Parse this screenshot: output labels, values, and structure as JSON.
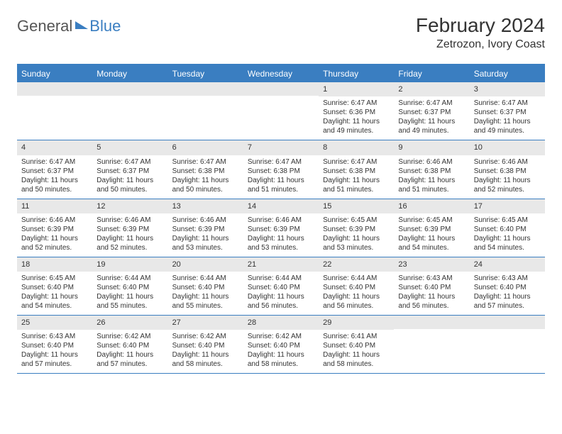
{
  "logo": {
    "text1": "General",
    "text2": "Blue"
  },
  "title": "February 2024",
  "location": "Zetrozon, Ivory Coast",
  "colors": {
    "header_bg": "#3a7ec1",
    "header_text": "#ffffff",
    "daynum_bg": "#e8e8e8",
    "border": "#3a7ec1",
    "body_text": "#333333"
  },
  "day_headers": [
    "Sunday",
    "Monday",
    "Tuesday",
    "Wednesday",
    "Thursday",
    "Friday",
    "Saturday"
  ],
  "weeks": [
    [
      null,
      null,
      null,
      null,
      {
        "n": "1",
        "sr": "Sunrise: 6:47 AM",
        "ss": "Sunset: 6:36 PM",
        "d1": "Daylight: 11 hours",
        "d2": "and 49 minutes."
      },
      {
        "n": "2",
        "sr": "Sunrise: 6:47 AM",
        "ss": "Sunset: 6:37 PM",
        "d1": "Daylight: 11 hours",
        "d2": "and 49 minutes."
      },
      {
        "n": "3",
        "sr": "Sunrise: 6:47 AM",
        "ss": "Sunset: 6:37 PM",
        "d1": "Daylight: 11 hours",
        "d2": "and 49 minutes."
      }
    ],
    [
      {
        "n": "4",
        "sr": "Sunrise: 6:47 AM",
        "ss": "Sunset: 6:37 PM",
        "d1": "Daylight: 11 hours",
        "d2": "and 50 minutes."
      },
      {
        "n": "5",
        "sr": "Sunrise: 6:47 AM",
        "ss": "Sunset: 6:37 PM",
        "d1": "Daylight: 11 hours",
        "d2": "and 50 minutes."
      },
      {
        "n": "6",
        "sr": "Sunrise: 6:47 AM",
        "ss": "Sunset: 6:38 PM",
        "d1": "Daylight: 11 hours",
        "d2": "and 50 minutes."
      },
      {
        "n": "7",
        "sr": "Sunrise: 6:47 AM",
        "ss": "Sunset: 6:38 PM",
        "d1": "Daylight: 11 hours",
        "d2": "and 51 minutes."
      },
      {
        "n": "8",
        "sr": "Sunrise: 6:47 AM",
        "ss": "Sunset: 6:38 PM",
        "d1": "Daylight: 11 hours",
        "d2": "and 51 minutes."
      },
      {
        "n": "9",
        "sr": "Sunrise: 6:46 AM",
        "ss": "Sunset: 6:38 PM",
        "d1": "Daylight: 11 hours",
        "d2": "and 51 minutes."
      },
      {
        "n": "10",
        "sr": "Sunrise: 6:46 AM",
        "ss": "Sunset: 6:38 PM",
        "d1": "Daylight: 11 hours",
        "d2": "and 52 minutes."
      }
    ],
    [
      {
        "n": "11",
        "sr": "Sunrise: 6:46 AM",
        "ss": "Sunset: 6:39 PM",
        "d1": "Daylight: 11 hours",
        "d2": "and 52 minutes."
      },
      {
        "n": "12",
        "sr": "Sunrise: 6:46 AM",
        "ss": "Sunset: 6:39 PM",
        "d1": "Daylight: 11 hours",
        "d2": "and 52 minutes."
      },
      {
        "n": "13",
        "sr": "Sunrise: 6:46 AM",
        "ss": "Sunset: 6:39 PM",
        "d1": "Daylight: 11 hours",
        "d2": "and 53 minutes."
      },
      {
        "n": "14",
        "sr": "Sunrise: 6:46 AM",
        "ss": "Sunset: 6:39 PM",
        "d1": "Daylight: 11 hours",
        "d2": "and 53 minutes."
      },
      {
        "n": "15",
        "sr": "Sunrise: 6:45 AM",
        "ss": "Sunset: 6:39 PM",
        "d1": "Daylight: 11 hours",
        "d2": "and 53 minutes."
      },
      {
        "n": "16",
        "sr": "Sunrise: 6:45 AM",
        "ss": "Sunset: 6:39 PM",
        "d1": "Daylight: 11 hours",
        "d2": "and 54 minutes."
      },
      {
        "n": "17",
        "sr": "Sunrise: 6:45 AM",
        "ss": "Sunset: 6:40 PM",
        "d1": "Daylight: 11 hours",
        "d2": "and 54 minutes."
      }
    ],
    [
      {
        "n": "18",
        "sr": "Sunrise: 6:45 AM",
        "ss": "Sunset: 6:40 PM",
        "d1": "Daylight: 11 hours",
        "d2": "and 54 minutes."
      },
      {
        "n": "19",
        "sr": "Sunrise: 6:44 AM",
        "ss": "Sunset: 6:40 PM",
        "d1": "Daylight: 11 hours",
        "d2": "and 55 minutes."
      },
      {
        "n": "20",
        "sr": "Sunrise: 6:44 AM",
        "ss": "Sunset: 6:40 PM",
        "d1": "Daylight: 11 hours",
        "d2": "and 55 minutes."
      },
      {
        "n": "21",
        "sr": "Sunrise: 6:44 AM",
        "ss": "Sunset: 6:40 PM",
        "d1": "Daylight: 11 hours",
        "d2": "and 56 minutes."
      },
      {
        "n": "22",
        "sr": "Sunrise: 6:44 AM",
        "ss": "Sunset: 6:40 PM",
        "d1": "Daylight: 11 hours",
        "d2": "and 56 minutes."
      },
      {
        "n": "23",
        "sr": "Sunrise: 6:43 AM",
        "ss": "Sunset: 6:40 PM",
        "d1": "Daylight: 11 hours",
        "d2": "and 56 minutes."
      },
      {
        "n": "24",
        "sr": "Sunrise: 6:43 AM",
        "ss": "Sunset: 6:40 PM",
        "d1": "Daylight: 11 hours",
        "d2": "and 57 minutes."
      }
    ],
    [
      {
        "n": "25",
        "sr": "Sunrise: 6:43 AM",
        "ss": "Sunset: 6:40 PM",
        "d1": "Daylight: 11 hours",
        "d2": "and 57 minutes."
      },
      {
        "n": "26",
        "sr": "Sunrise: 6:42 AM",
        "ss": "Sunset: 6:40 PM",
        "d1": "Daylight: 11 hours",
        "d2": "and 57 minutes."
      },
      {
        "n": "27",
        "sr": "Sunrise: 6:42 AM",
        "ss": "Sunset: 6:40 PM",
        "d1": "Daylight: 11 hours",
        "d2": "and 58 minutes."
      },
      {
        "n": "28",
        "sr": "Sunrise: 6:42 AM",
        "ss": "Sunset: 6:40 PM",
        "d1": "Daylight: 11 hours",
        "d2": "and 58 minutes."
      },
      {
        "n": "29",
        "sr": "Sunrise: 6:41 AM",
        "ss": "Sunset: 6:40 PM",
        "d1": "Daylight: 11 hours",
        "d2": "and 58 minutes."
      },
      null,
      null
    ]
  ]
}
